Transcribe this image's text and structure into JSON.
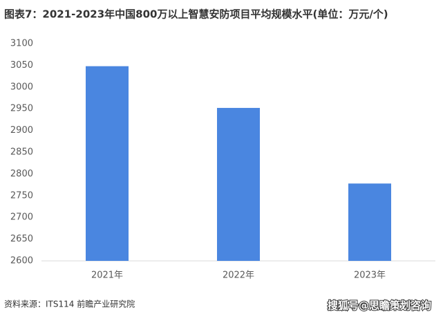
{
  "chart_data": {
    "type": "bar",
    "title": "图表7：2021-2023年中国800万以上智慧安防项目平均规模水平(单位：万元/个)",
    "categories": [
      "2021年",
      "2022年",
      "2023年"
    ],
    "values": [
      3048,
      2952,
      2778
    ],
    "color": "#4a86e0",
    "ylim": [
      2600,
      3100
    ],
    "yticks": [
      2600,
      2650,
      2700,
      2750,
      2800,
      2850,
      2900,
      2950,
      3000,
      3050,
      3100
    ],
    "grid": false,
    "source": "资料来源：ITS114 前瞻产业研究院",
    "watermark": "搜狐号@思瞻策划咨询"
  }
}
